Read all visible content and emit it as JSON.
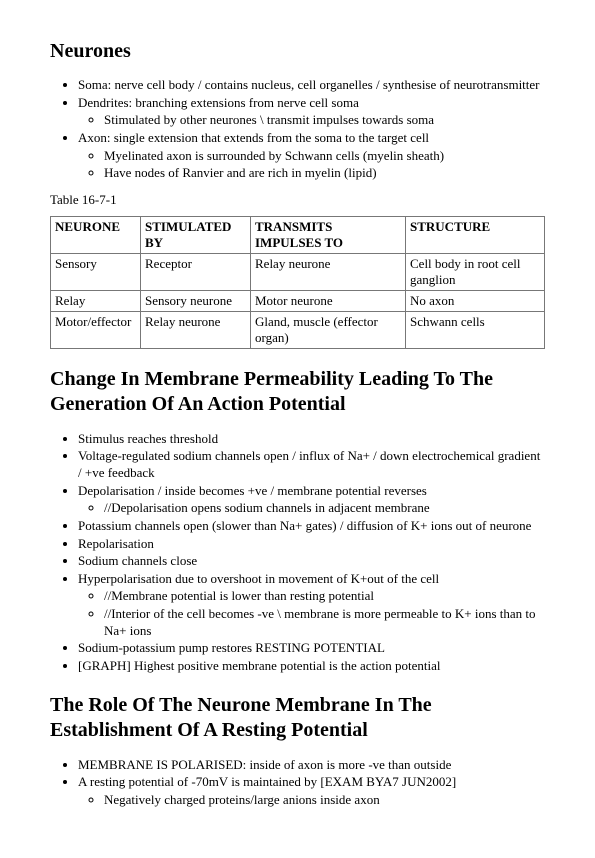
{
  "title1": "Neurones",
  "list1": {
    "i0": "Soma: nerve cell body / contains nucleus, cell organelles / synthesise of neurotransmitter",
    "i1": "Dendrites: branching extensions from nerve cell soma",
    "i1s0": "Stimulated by other neurones \\ transmit impulses towards soma",
    "i2": "Axon: single extension that extends from the soma to the target cell",
    "i2s0": "Myelinated axon is surrounded by Schwann cells (myelin sheath)",
    "i2s1": "Have nodes of Ranvier and are rich in myelin (lipid)"
  },
  "tableCaption": "Table 16-7-1",
  "table": {
    "h0": "NEURONE",
    "h1": "STIMULATED BY",
    "h2": "TRANSMITS IMPULSES TO",
    "h3": "STRUCTURE",
    "r0c0": "Sensory",
    "r0c1": "Receptor",
    "r0c2": "Relay neurone",
    "r0c3": "Cell body in root cell ganglion",
    "r1c0": "Relay",
    "r1c1": "Sensory neurone",
    "r1c2": "Motor neurone",
    "r1c3": "No axon",
    "r2c0": "Motor/effector",
    "r2c1": "Relay neurone",
    "r2c2": "Gland, muscle (effector organ)",
    "r2c3": "Schwann cells",
    "colWidths": [
      "90px",
      "110px",
      "155px",
      "auto"
    ]
  },
  "title2": "Change In Membrane Permeability Leading To The Generation Of An Action Potential",
  "list2": {
    "i0": "Stimulus reaches threshold",
    "i1": "Voltage-regulated sodium channels open / influx of Na+ / down electrochemical gradient / +ve feedback",
    "i2": "Depolarisation / inside becomes +ve / membrane potential reverses",
    "i2s0": "//Depolarisation opens sodium channels in adjacent membrane",
    "i3": "Potassium channels open (slower than Na+ gates) / diffusion of K+ ions out of neurone",
    "i4": "Repolarisation",
    "i5": "Sodium channels close",
    "i6": "Hyperpolarisation due to overshoot in movement of K+out of the cell",
    "i6s0": "//Membrane potential is lower than resting potential",
    "i6s1": "//Interior of the cell becomes -ve \\ membrane is more permeable to K+ ions than to Na+ ions",
    "i7": "Sodium-potassium pump restores RESTING POTENTIAL",
    "i8": "[GRAPH] Highest positive membrane potential is the action potential"
  },
  "title3": "The Role Of The Neurone Membrane In The Establishment Of A Resting Potential",
  "list3": {
    "i0": "MEMBRANE IS POLARISED: inside of axon is more -ve than outside",
    "i1": "A resting potential of -70mV is maintained by [EXAM BYA7 JUN2002]",
    "i1s0": "Negatively charged proteins/large anions inside axon"
  }
}
